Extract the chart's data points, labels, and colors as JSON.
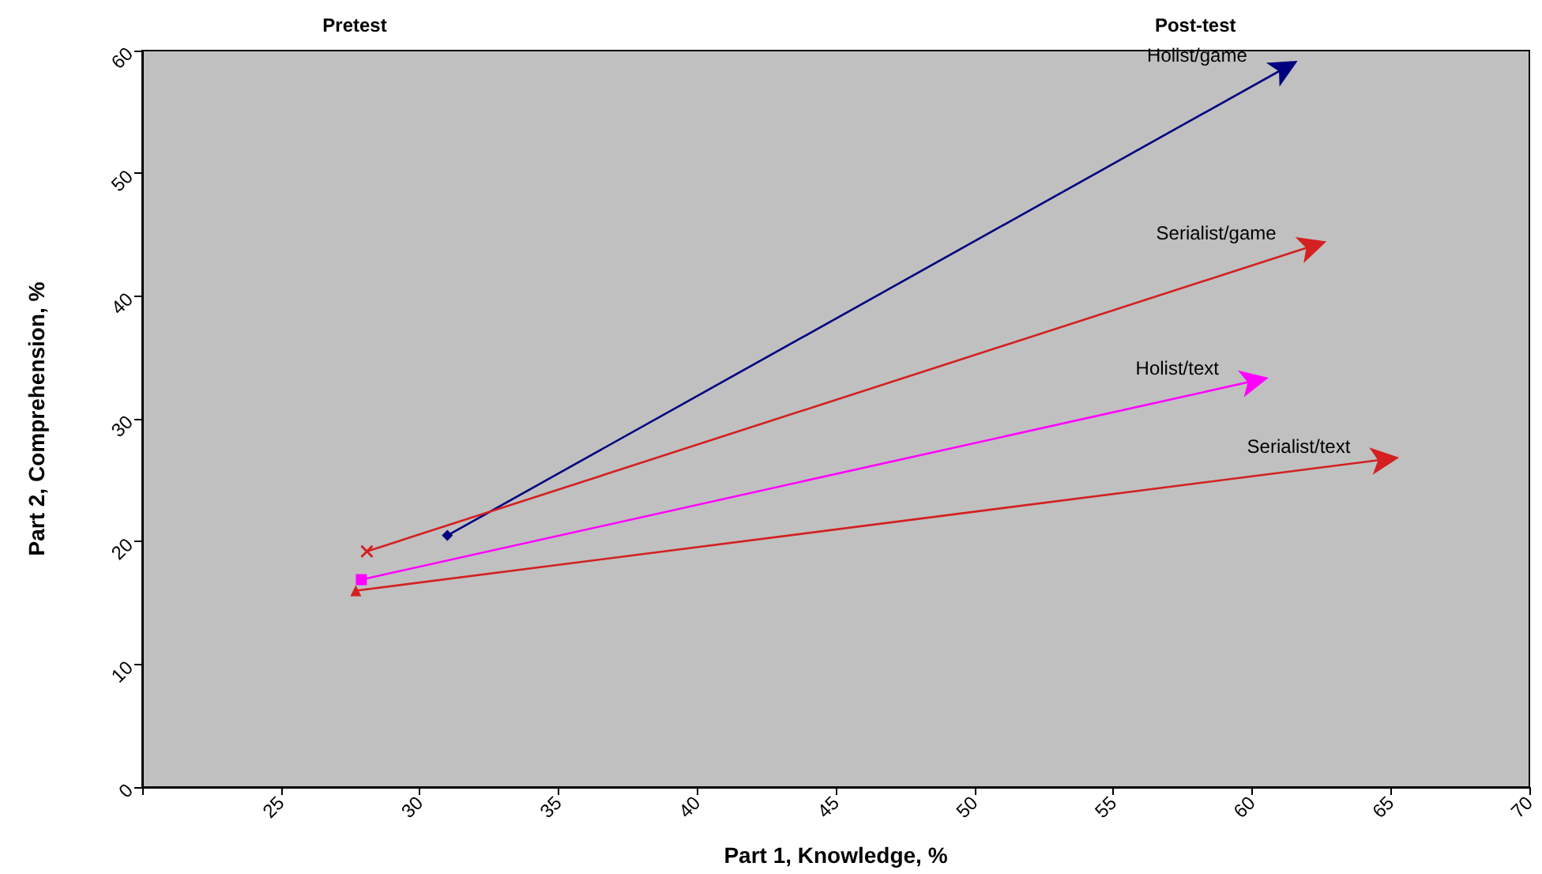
{
  "chart_data": {
    "type": "line",
    "xlabel": "Part 1, Knowledge, %",
    "ylabel": "Part 2, Comprehension, %",
    "annotations": [
      "Pretest",
      "Post-test"
    ],
    "xlim": [
      20,
      70
    ],
    "xticks": [
      {
        "value": 20,
        "label": null
      },
      25,
      30,
      35,
      40,
      45,
      50,
      55,
      60,
      65,
      70
    ],
    "ylim": [
      0,
      60
    ],
    "yticks": [
      0,
      10,
      20,
      30,
      40,
      50,
      60
    ],
    "grid": false,
    "legend": false,
    "series": [
      {
        "name": "Holist/game",
        "color": "#000080",
        "x": [
          31.0,
          61.2
        ],
        "values": [
          20.5,
          58.6
        ],
        "marker": "diamond"
      },
      {
        "name": "Serialist/game",
        "color": "#d42020",
        "x": [
          28.1,
          62.2
        ],
        "values": [
          19.2,
          44.1
        ],
        "marker": "cross"
      },
      {
        "name": "Holist/text",
        "color": "#ff00ff",
        "x": [
          27.9,
          60.1
        ],
        "values": [
          16.9,
          33.1
        ],
        "marker": "square"
      },
      {
        "name": "Serialist/text",
        "color": "#d42020",
        "x": [
          27.7,
          64.8
        ],
        "values": [
          16.0,
          26.7
        ],
        "marker": "triangle"
      }
    ]
  }
}
